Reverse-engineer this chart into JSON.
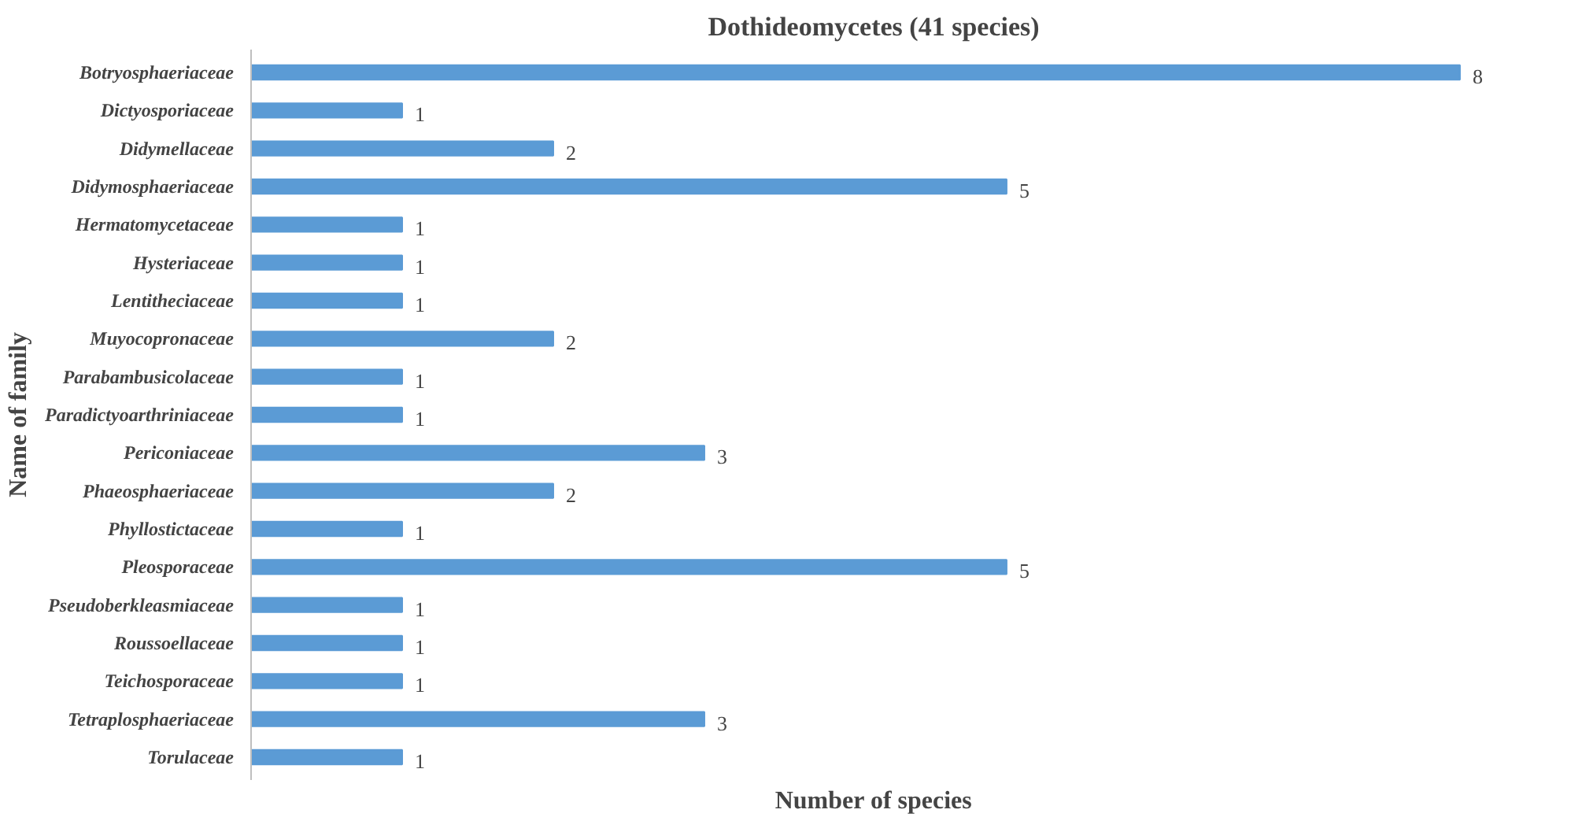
{
  "chart_data": {
    "type": "bar",
    "orientation": "horizontal",
    "title": "Dothideomycetes (41 species)",
    "xlabel": "Number of species",
    "ylabel": "Name of family",
    "categories": [
      "Botryosphaeriaceae",
      "Dictyosporiaceae",
      "Didymellaceae",
      "Didymosphaeriaceae",
      "Hermatomycetaceae",
      "Hysteriaceae",
      "Lentitheciaceae",
      "Muyocopronaceae",
      "Parabambusicolaceae",
      "Paradictyoarthriniaceae",
      "Periconiaceae",
      "Phaeosphaeriaceae",
      "Phyllostictaceae",
      "Pleosporaceae",
      "Pseudoberkleasmiaceae",
      "Roussoellaceae",
      "Teichosporaceae",
      "Tetraplosphaeriaceae",
      "Torulaceae"
    ],
    "values": [
      8,
      1,
      2,
      5,
      1,
      1,
      1,
      2,
      1,
      1,
      3,
      2,
      1,
      5,
      1,
      1,
      1,
      3,
      1
    ],
    "color": "#5b9bd5",
    "data_labels": true,
    "grid": false,
    "tick_labels": "y"
  }
}
